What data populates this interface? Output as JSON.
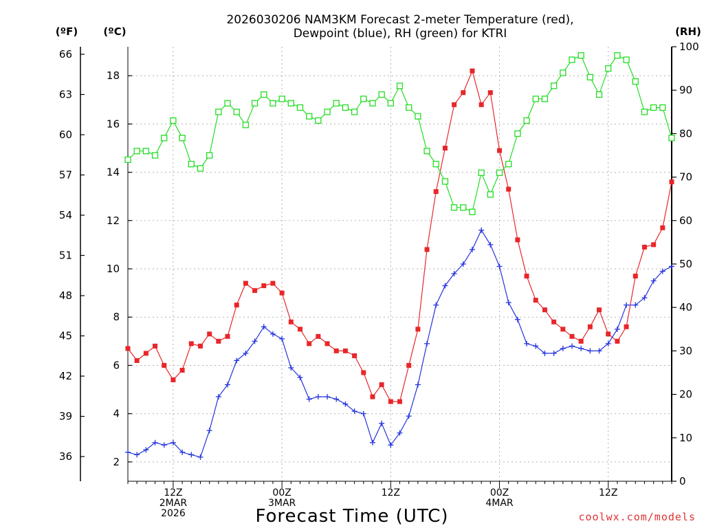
{
  "chart_data": {
    "type": "line",
    "title_lines": [
      "2026030206 NAM3KM Forecast 2-meter Temperature (red),",
      "Dewpoint (blue), RH (green) for KTRI"
    ],
    "xlabel": "Forecast Time (UTC)",
    "credit": "coolwx.com/models",
    "unit_labels": {
      "fahrenheit": "(ºF)",
      "celsius": "(ºC)",
      "rh": "(RH)"
    },
    "x_unit": "hours since 2026-03-02 06Z",
    "xlim": [
      1,
      61
    ],
    "x_ticks": [
      {
        "x": 6,
        "lines": [
          "12Z",
          "2MAR",
          "2026"
        ]
      },
      {
        "x": 18,
        "lines": [
          "00Z",
          "3MAR"
        ]
      },
      {
        "x": 30,
        "lines": [
          "12Z"
        ]
      },
      {
        "x": 42,
        "lines": [
          "00Z",
          "4MAR"
        ]
      },
      {
        "x": 54,
        "lines": [
          "12Z"
        ]
      }
    ],
    "y_celsius": {
      "lim": [
        1.2,
        19.2
      ],
      "ticks": [
        2,
        4,
        6,
        8,
        10,
        12,
        14,
        16,
        18
      ]
    },
    "y_fahrenheit": {
      "ticks": [
        36,
        39,
        42,
        45,
        48,
        51,
        54,
        57,
        60,
        63,
        66
      ]
    },
    "y_rh": {
      "lim": [
        0,
        100
      ],
      "ticks": [
        0,
        10,
        20,
        30,
        40,
        50,
        60,
        70,
        80,
        90,
        100
      ]
    },
    "grid": true,
    "series": [
      {
        "name": "Temperature",
        "axis": "celsius",
        "color": "#e8262a",
        "marker": "filled-square",
        "x": [
          1,
          2,
          3,
          4,
          5,
          6,
          7,
          8,
          9,
          10,
          11,
          12,
          13,
          14,
          15,
          16,
          17,
          18,
          19,
          20,
          21,
          22,
          23,
          24,
          25,
          26,
          27,
          28,
          29,
          30,
          31,
          32,
          33,
          34,
          35,
          36,
          37,
          38,
          39,
          40,
          41,
          42,
          43,
          44,
          45,
          46,
          47,
          48,
          49,
          50,
          51,
          52,
          53,
          54,
          55,
          56,
          57,
          58,
          59,
          60,
          61
        ],
        "values": [
          6.7,
          6.2,
          6.5,
          6.8,
          6.0,
          5.4,
          5.8,
          6.9,
          6.8,
          7.3,
          7.0,
          7.2,
          8.5,
          9.4,
          9.1,
          9.3,
          9.4,
          9.0,
          7.8,
          7.5,
          6.9,
          7.2,
          6.9,
          6.6,
          6.6,
          6.4,
          5.7,
          4.7,
          5.2,
          4.5,
          4.5,
          6.0,
          7.5,
          10.8,
          13.2,
          15.0,
          16.8,
          17.3,
          18.2,
          16.8,
          17.3,
          14.9,
          13.3,
          11.2,
          9.7,
          8.7,
          8.3,
          7.8,
          7.5,
          7.2,
          7.0,
          7.6,
          8.3,
          7.3,
          7.0,
          7.6,
          9.7,
          10.9,
          11.0,
          11.7,
          13.6
        ]
      },
      {
        "name": "Dewpoint",
        "axis": "celsius",
        "color": "#2233dd",
        "marker": "plus",
        "x": [
          1,
          2,
          3,
          4,
          5,
          6,
          7,
          8,
          9,
          10,
          11,
          12,
          13,
          14,
          15,
          16,
          17,
          18,
          19,
          20,
          21,
          22,
          23,
          24,
          25,
          26,
          27,
          28,
          29,
          30,
          31,
          32,
          33,
          34,
          35,
          36,
          37,
          38,
          39,
          40,
          41,
          42,
          43,
          44,
          45,
          46,
          47,
          48,
          49,
          50,
          51,
          52,
          53,
          54,
          55,
          56,
          57,
          58,
          59,
          60,
          61
        ],
        "values": [
          2.4,
          2.3,
          2.5,
          2.8,
          2.7,
          2.8,
          2.4,
          2.3,
          2.2,
          3.3,
          4.7,
          5.2,
          6.2,
          6.5,
          7.0,
          7.6,
          7.3,
          7.1,
          5.9,
          5.5,
          4.6,
          4.7,
          4.7,
          4.6,
          4.4,
          4.1,
          4.0,
          2.8,
          3.6,
          2.7,
          3.2,
          3.9,
          5.2,
          6.9,
          8.5,
          9.3,
          9.8,
          10.2,
          10.8,
          11.6,
          11.0,
          10.1,
          8.6,
          7.9,
          6.9,
          6.8,
          6.5,
          6.5,
          6.7,
          6.8,
          6.7,
          6.6,
          6.6,
          6.9,
          7.5,
          8.5,
          8.5,
          8.8,
          9.5,
          9.9,
          10.1
        ]
      },
      {
        "name": "RH",
        "axis": "rh",
        "color": "#22dd22",
        "marker": "open-square",
        "x": [
          1,
          2,
          3,
          4,
          5,
          6,
          7,
          8,
          9,
          10,
          11,
          12,
          13,
          14,
          15,
          16,
          17,
          18,
          19,
          20,
          21,
          22,
          23,
          24,
          25,
          26,
          27,
          28,
          29,
          30,
          31,
          32,
          33,
          34,
          35,
          36,
          37,
          38,
          39,
          40,
          41,
          42,
          43,
          44,
          45,
          46,
          47,
          48,
          49,
          50,
          51,
          52,
          53,
          54,
          55,
          56,
          57,
          58,
          59,
          60,
          61
        ],
        "values": [
          74,
          76,
          76,
          75,
          79,
          83,
          79,
          73,
          72,
          75,
          85,
          87,
          85,
          82,
          87,
          89,
          87,
          88,
          87,
          86,
          84,
          83,
          85,
          87,
          86,
          85,
          88,
          87,
          89,
          87,
          91,
          86,
          84,
          76,
          73,
          69,
          63,
          63,
          62,
          71,
          66,
          71,
          73,
          80,
          83,
          88,
          88,
          91,
          94,
          97,
          98,
          93,
          89,
          95,
          98,
          97,
          92,
          85,
          86,
          86,
          79
        ]
      }
    ]
  }
}
